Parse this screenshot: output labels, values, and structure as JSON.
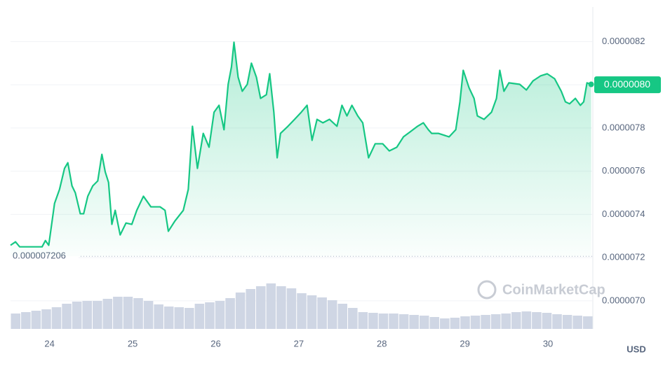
{
  "chart_data": {
    "type": "line",
    "x": [
      23.53,
      23.59,
      23.64,
      23.91,
      23.95,
      23.99,
      24.06,
      24.12,
      24.18,
      24.22,
      24.27,
      24.31,
      24.37,
      24.41,
      24.46,
      24.52,
      24.58,
      24.63,
      24.67,
      24.71,
      24.75,
      24.79,
      24.85,
      24.92,
      24.99,
      25.05,
      25.13,
      25.22,
      25.33,
      25.39,
      25.43,
      25.51,
      25.61,
      25.67,
      25.72,
      25.78,
      25.85,
      25.92,
      25.98,
      26.04,
      26.1,
      26.15,
      26.19,
      26.22,
      26.27,
      26.32,
      26.38,
      26.43,
      26.49,
      26.54,
      26.61,
      26.65,
      26.7,
      26.74,
      26.78,
      26.87,
      26.95,
      27.03,
      27.1,
      27.16,
      27.22,
      27.29,
      27.37,
      27.46,
      27.52,
      27.58,
      27.64,
      27.71,
      27.77,
      27.84,
      27.92,
      28.01,
      28.09,
      28.18,
      28.26,
      28.34,
      28.43,
      28.5,
      28.56,
      28.6,
      28.68,
      28.81,
      28.89,
      28.94,
      28.98,
      29.05,
      29.11,
      29.15,
      29.23,
      29.32,
      29.38,
      29.42,
      29.47,
      29.53,
      29.66,
      29.74,
      29.82,
      29.91,
      29.99,
      30.08,
      30.16,
      30.21,
      30.26,
      30.33,
      30.39,
      30.43,
      30.47,
      30.52
    ],
    "series": [
      {
        "color": "#16c784",
        "values": [
          7.257e-07,
          7.273e-07,
          7.25e-07,
          7.25e-07,
          7.279e-07,
          7.257e-07,
          7.451e-07,
          7.516e-07,
          7.613e-07,
          7.639e-07,
          7.532e-07,
          7.5e-07,
          7.403e-07,
          7.403e-07,
          7.484e-07,
          7.532e-07,
          7.555e-07,
          7.678e-07,
          7.597e-07,
          7.548e-07,
          7.354e-07,
          7.419e-07,
          7.305e-07,
          7.36e-07,
          7.354e-07,
          7.419e-07,
          7.484e-07,
          7.435e-07,
          7.435e-07,
          7.419e-07,
          7.322e-07,
          7.37e-07,
          7.419e-07,
          7.516e-07,
          7.808e-07,
          7.613e-07,
          7.775e-07,
          7.711e-07,
          7.873e-07,
          7.905e-07,
          7.792e-07,
          8.002e-07,
          8.083e-07,
          8.197e-07,
          8.035e-07,
          7.97e-07,
          8.002e-07,
          8.1e-07,
          8.035e-07,
          7.937e-07,
          7.954e-07,
          8.051e-07,
          7.873e-07,
          7.662e-07,
          7.775e-07,
          7.808e-07,
          7.84e-07,
          7.873e-07,
          7.905e-07,
          7.743e-07,
          7.84e-07,
          7.824e-07,
          7.84e-07,
          7.808e-07,
          7.905e-07,
          7.856e-07,
          7.905e-07,
          7.856e-07,
          7.824e-07,
          7.662e-07,
          7.727e-07,
          7.727e-07,
          7.694e-07,
          7.711e-07,
          7.759e-07,
          7.782e-07,
          7.808e-07,
          7.824e-07,
          7.792e-07,
          7.775e-07,
          7.775e-07,
          7.759e-07,
          7.792e-07,
          7.921e-07,
          8.067e-07,
          7.986e-07,
          7.937e-07,
          7.856e-07,
          7.84e-07,
          7.873e-07,
          7.937e-07,
          8.067e-07,
          7.97e-07,
          8.009e-07,
          8.002e-07,
          7.976e-07,
          8.018e-07,
          8.041e-07,
          8.051e-07,
          8.028e-07,
          7.97e-07,
          7.921e-07,
          7.912e-07,
          7.937e-07,
          7.905e-07,
          7.921e-07,
          8.009e-07,
          8.002e-07
        ]
      }
    ],
    "xlim": [
      23.53,
      30.54
    ],
    "xticks": [
      24,
      25,
      26,
      27,
      28,
      29,
      30
    ],
    "ylim": [
      6.87e-07,
      8.36e-07
    ],
    "yticks": [
      {
        "value": 7e-07,
        "label": "0.0000070"
      },
      {
        "value": 7.2e-07,
        "label": "0.0000072"
      },
      {
        "value": 7.4e-07,
        "label": "0.0000074"
      },
      {
        "value": 7.6e-07,
        "label": "0.0000076"
      },
      {
        "value": 7.8e-07,
        "label": "0.0000078"
      },
      {
        "value": 8e-07,
        "label": "0.0000080"
      },
      {
        "value": 8.2e-07,
        "label": "0.0000082"
      }
    ],
    "grid": true,
    "baseline": {
      "value": 7.206e-07,
      "label": "0.000007206"
    },
    "current_price": {
      "value": 8e-07,
      "label": "0.0000080"
    },
    "currency": "USD",
    "watermark": "CoinMarketCap",
    "volume": {
      "color": "#cfd6e4",
      "values": [
        22,
        24,
        26,
        28,
        31,
        36,
        39,
        40,
        40,
        43,
        46,
        46,
        44,
        40,
        35,
        32,
        31,
        30,
        36,
        38,
        40,
        44,
        52,
        57,
        61,
        65,
        61,
        58,
        51,
        48,
        45,
        41,
        36,
        30,
        24,
        23,
        22,
        22,
        21,
        20,
        19,
        17,
        15,
        16,
        18,
        19,
        20,
        21,
        22,
        24,
        25,
        24,
        23,
        21,
        20,
        19,
        18
      ]
    }
  }
}
